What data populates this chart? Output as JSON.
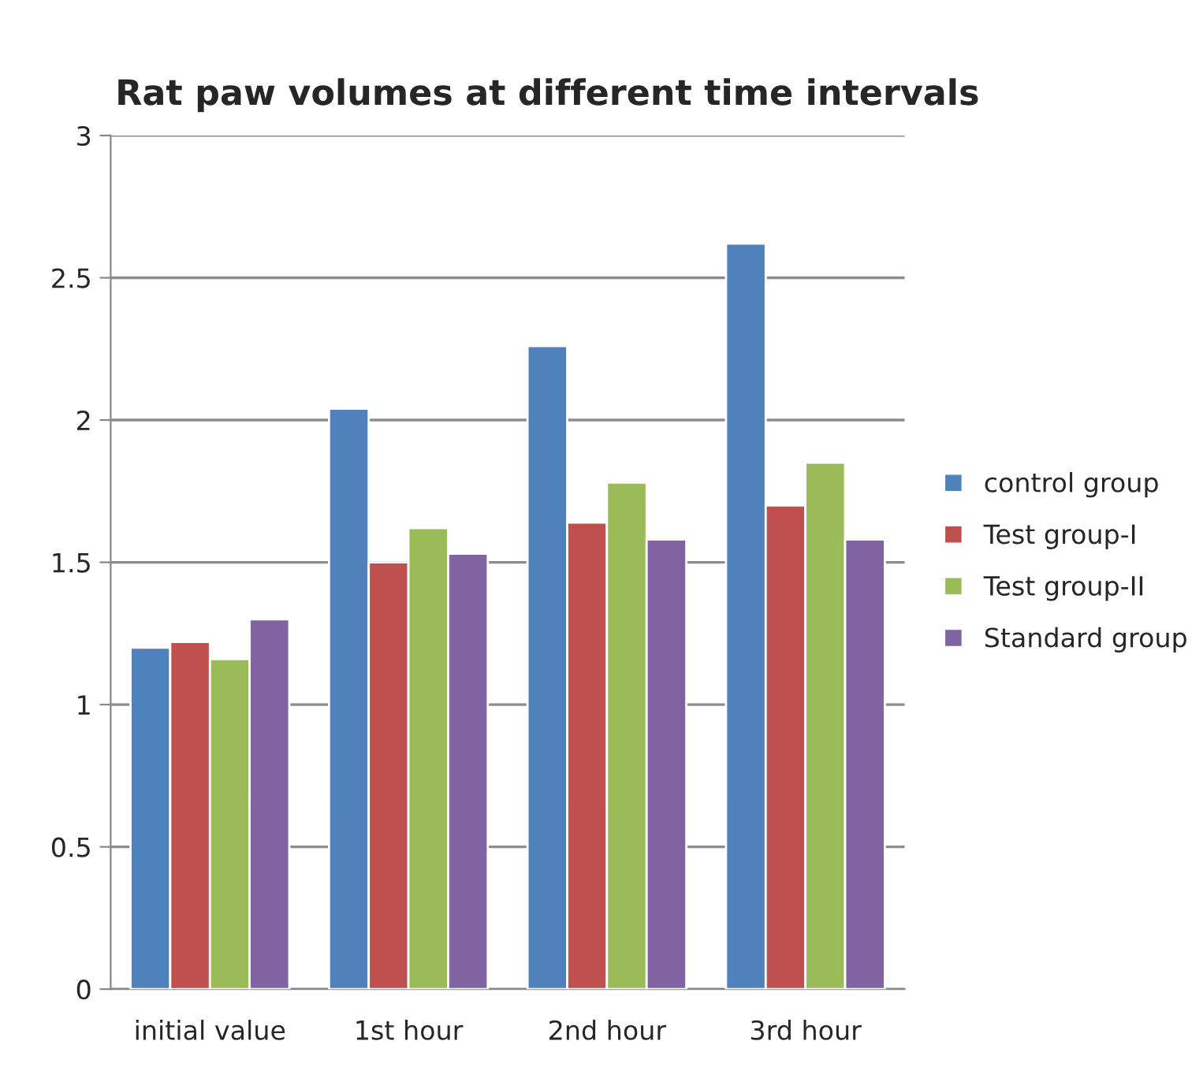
{
  "chart_data": {
    "type": "bar",
    "title": "Rat paw volumes at different time intervals",
    "categories": [
      "initial value",
      "1st hour",
      "2nd hour",
      "3rd hour"
    ],
    "series": [
      {
        "name": "control group",
        "color": "#4f81bd",
        "values": [
          1.2,
          2.04,
          2.26,
          2.62
        ]
      },
      {
        "name": "Test group-I",
        "color": "#c0504d",
        "values": [
          1.22,
          1.5,
          1.64,
          1.7
        ]
      },
      {
        "name": "Test group-II",
        "color": "#9bbb59",
        "values": [
          1.16,
          1.62,
          1.78,
          1.85
        ]
      },
      {
        "name": "Standard group",
        "color": "#8064a2",
        "values": [
          1.3,
          1.53,
          1.58,
          1.58
        ]
      }
    ],
    "ylim": [
      0,
      3
    ],
    "yticks": [
      0,
      0.5,
      1,
      1.5,
      2,
      2.5,
      3
    ],
    "grid": "y",
    "legend": "right"
  }
}
